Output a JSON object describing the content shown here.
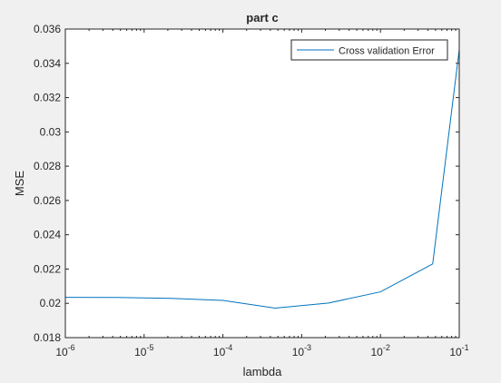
{
  "chart_data": {
    "type": "line",
    "title": "part c",
    "xlabel": "lambda",
    "ylabel": "MSE",
    "xscale": "log",
    "xlim": [
      1e-06,
      0.1
    ],
    "ylim": [
      0.018,
      0.036
    ],
    "grid": false,
    "legend_position": "top-right",
    "x_tick_labels": [
      {
        "base": "10",
        "exp": "-6"
      },
      {
        "base": "10",
        "exp": "-5"
      },
      {
        "base": "10",
        "exp": "-4"
      },
      {
        "base": "10",
        "exp": "-3"
      },
      {
        "base": "10",
        "exp": "-2"
      },
      {
        "base": "10",
        "exp": "-1"
      }
    ],
    "x_ticks": [
      1e-06,
      1e-05,
      0.0001,
      0.001,
      0.01,
      0.1
    ],
    "y_ticks": [
      0.018,
      0.02,
      0.022,
      0.024,
      0.026,
      0.028,
      0.03,
      0.032,
      0.034,
      0.036
    ],
    "y_tick_labels": [
      "0.018",
      "0.02",
      "0.022",
      "0.024",
      "0.026",
      "0.028",
      "0.03",
      "0.032",
      "0.034",
      "0.036"
    ],
    "series": [
      {
        "name": "Cross validation Error",
        "color": "#0072bd",
        "x": [
          1e-06,
          4.6e-06,
          2.2e-05,
          0.0001,
          0.00046,
          0.0022,
          0.01,
          0.046,
          0.1
        ],
        "y": [
          0.02035,
          0.02034,
          0.02029,
          0.02017,
          0.01972,
          0.02002,
          0.02067,
          0.0223,
          0.0348
        ]
      }
    ],
    "colors": {
      "axes_background": "#ffffff",
      "figure_background": "#f0f0f0",
      "axis": "#262626"
    }
  }
}
